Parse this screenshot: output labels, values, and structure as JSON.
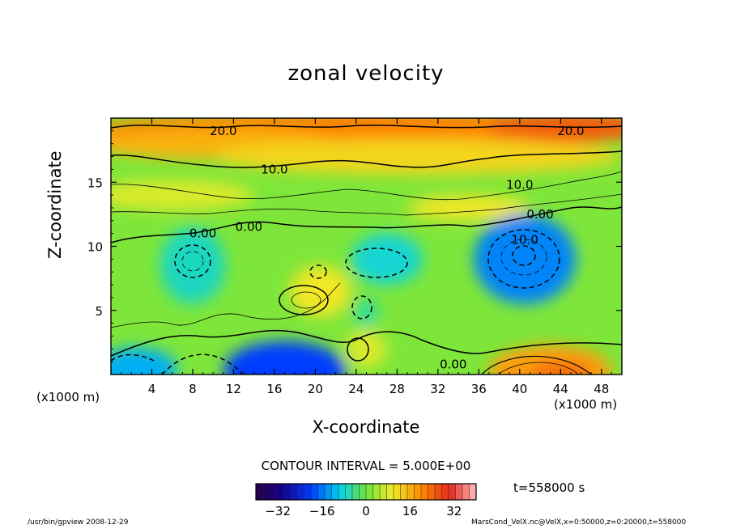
{
  "title": "zonal velocity",
  "chart_data": {
    "type": "heatmap",
    "title": "zonal velocity",
    "xlabel": "X-coordinate",
    "ylabel": "Z-coordinate",
    "x_unit_left": "(x1000 m)",
    "x_unit_right": "(x1000 m)",
    "xlim": [
      0,
      50
    ],
    "ylim": [
      0,
      20
    ],
    "x_ticks": [
      4,
      8,
      12,
      16,
      20,
      24,
      28,
      32,
      36,
      40,
      44,
      48
    ],
    "y_ticks": [
      5,
      10,
      15
    ],
    "contour_labels": [
      {
        "text": "20.0",
        "x": 11,
        "z": 19.0
      },
      {
        "text": "20.0",
        "x": 45,
        "z": 19.0
      },
      {
        "text": "10.0",
        "x": 16,
        "z": 16.0
      },
      {
        "text": "10.0",
        "x": 40,
        "z": 14.8
      },
      {
        "text": "0.00",
        "x": 9,
        "z": 11.0
      },
      {
        "text": "0.00",
        "x": 13.5,
        "z": 11.5
      },
      {
        "text": "0.00",
        "x": 42,
        "z": 12.5
      },
      {
        "text": "10.0",
        "x": 40.5,
        "z": 10.5
      },
      {
        "text": "0.00",
        "x": 33.5,
        "z": 0.8
      }
    ],
    "blobs": [
      {
        "x": 25,
        "z": 19.0,
        "rx": 27,
        "rz": 1.6,
        "v": 21
      },
      {
        "x": 45,
        "z": 19.3,
        "rx": 8,
        "rz": 1.2,
        "v": 25
      },
      {
        "x": 10,
        "z": 18.0,
        "rx": 12,
        "rz": 1.2,
        "v": 16
      },
      {
        "x": 30,
        "z": 17.0,
        "rx": 20,
        "rz": 1.4,
        "v": 12
      },
      {
        "x": 6,
        "z": 14.0,
        "rx": 8,
        "rz": 1.2,
        "v": 8
      },
      {
        "x": 35,
        "z": 13.0,
        "rx": 6,
        "rz": 1.0,
        "v": 10
      },
      {
        "x": 8,
        "z": 8.5,
        "rx": 3.2,
        "rz": 3.0,
        "v": -7
      },
      {
        "x": 40.5,
        "z": 9.0,
        "rx": 5,
        "rz": 3.5,
        "v": -15
      },
      {
        "x": 27,
        "z": 9.0,
        "rx": 3.5,
        "rz": 2.0,
        "v": -8
      },
      {
        "x": 20.5,
        "z": 6.5,
        "rx": 3.0,
        "rz": 2.0,
        "v": 10
      },
      {
        "x": 25,
        "z": 4.8,
        "rx": 1.2,
        "rz": 1.2,
        "v": -5
      },
      {
        "x": 25,
        "z": 2.0,
        "rx": 2.0,
        "rz": 1.5,
        "v": 8
      },
      {
        "x": 17,
        "z": 0.3,
        "rx": 6,
        "rz": 2.3,
        "v": -20
      },
      {
        "x": 2.5,
        "z": 0.4,
        "rx": 4,
        "rz": 1.7,
        "v": -12
      },
      {
        "x": 43,
        "z": 0.3,
        "rx": 6,
        "rz": 2.0,
        "v": 18
      },
      {
        "x": 44,
        "z": 0.1,
        "rx": 3,
        "rz": 0.8,
        "v": 24
      }
    ],
    "colorbar": {
      "min": -40,
      "max": 40,
      "ticks": [
        -32,
        -16,
        0,
        16,
        32
      ],
      "tick_labels": [
        "−32",
        "−16",
        "0",
        "16",
        "32"
      ]
    }
  },
  "contour_interval": "CONTOUR INTERVAL = 5.000E+00",
  "time_label": "t=558000  s",
  "footer_left": "/usr/bin/gpview  2008-12-29",
  "footer_right": "MarsCond_VelX.nc@VelX,x=0:50000,z=0:20000,t=558000"
}
